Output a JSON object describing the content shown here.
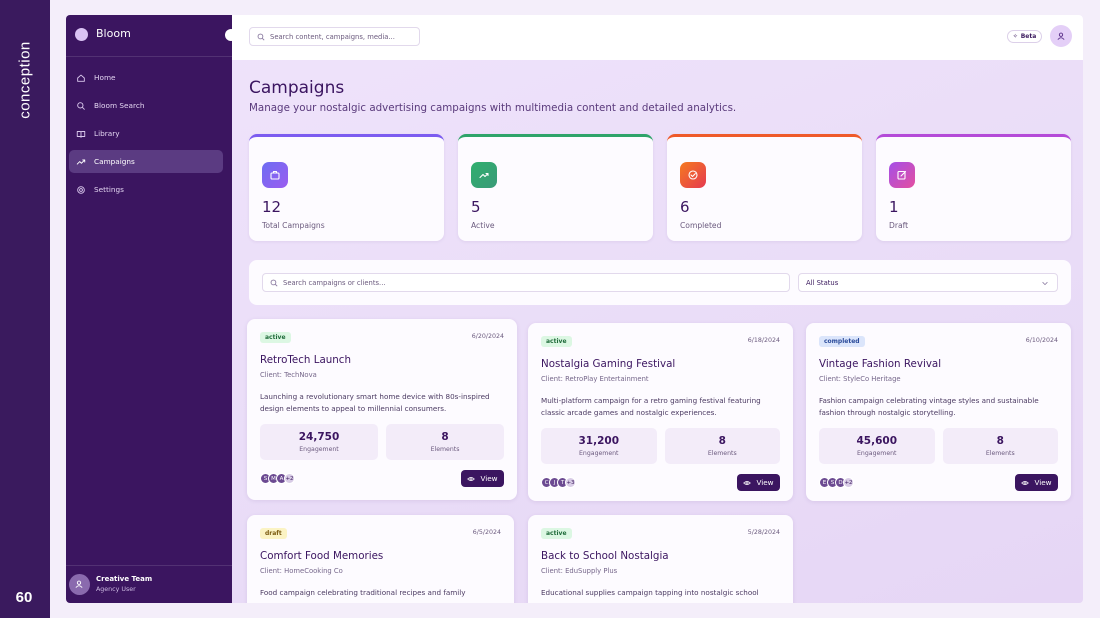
{
  "brand": {
    "side_label": "conception",
    "page_number": "60"
  },
  "sidebar": {
    "logo": "Bloom",
    "nav": [
      "Home",
      "Bloom Search",
      "Library",
      "Campaigns",
      "Settings"
    ],
    "user": {
      "name": "Creative Team",
      "role": "Agency User"
    }
  },
  "topbar": {
    "search_placeholder": "Search content, campaigns, media...",
    "badge": "Beta"
  },
  "header": {
    "title": "Campaigns",
    "subtitle": "Manage your nostalgic advertising campaigns with multimedia content and detailed analytics."
  },
  "stats": [
    {
      "value": 12,
      "label": "Total Campaigns"
    },
    {
      "value": 5,
      "label": "Active"
    },
    {
      "value": 6,
      "label": "Completed"
    },
    {
      "value": 1,
      "label": "Draft"
    }
  ],
  "filter": {
    "search_placeholder": "Search campaigns or clients...",
    "status": "All Status"
  },
  "metric_labels": [
    "Engagement",
    "Elements"
  ],
  "card_action": "View",
  "campaigns": [
    {
      "status": "active",
      "date": "6/20/2024",
      "title": "RetroTech Launch",
      "client": "Client: TechNova",
      "description": "Launching a revolutionary smart home device with 80s-inspired design elements to appeal to millennial consumers.",
      "engagement": "24,750",
      "elements": 8,
      "avatars": [
        "S",
        "M",
        "A"
      ],
      "more": "+2"
    },
    {
      "status": "active",
      "date": "6/18/2024",
      "title": "Nostalgia Gaming Festival",
      "client": "Client: RetroPlay Entertainment",
      "description": "Multi-platform campaign for a retro gaming festival featuring classic arcade games and nostalgic experiences.",
      "engagement": "31,200",
      "elements": 8,
      "avatars": [
        "C",
        "J",
        "T"
      ],
      "more": "+3"
    },
    {
      "status": "completed",
      "date": "6/10/2024",
      "title": "Vintage Fashion Revival",
      "client": "Client: StyleCo Heritage",
      "description": "Fashion campaign celebrating vintage styles and sustainable fashion through nostalgic storytelling.",
      "engagement": "45,600",
      "elements": 8,
      "avatars": [
        "E",
        "S",
        "D"
      ],
      "more": "+2"
    },
    {
      "status": "draft",
      "date": "6/5/2024",
      "title": "Comfort Food Memories",
      "client": "Client: HomeCooking Co",
      "description": "Food campaign celebrating traditional recipes and family"
    },
    {
      "status": "active",
      "date": "5/28/2024",
      "title": "Back to School Nostalgia",
      "client": "Client: EduSupply Plus",
      "description": "Educational supplies campaign tapping into nostalgic school"
    }
  ]
}
